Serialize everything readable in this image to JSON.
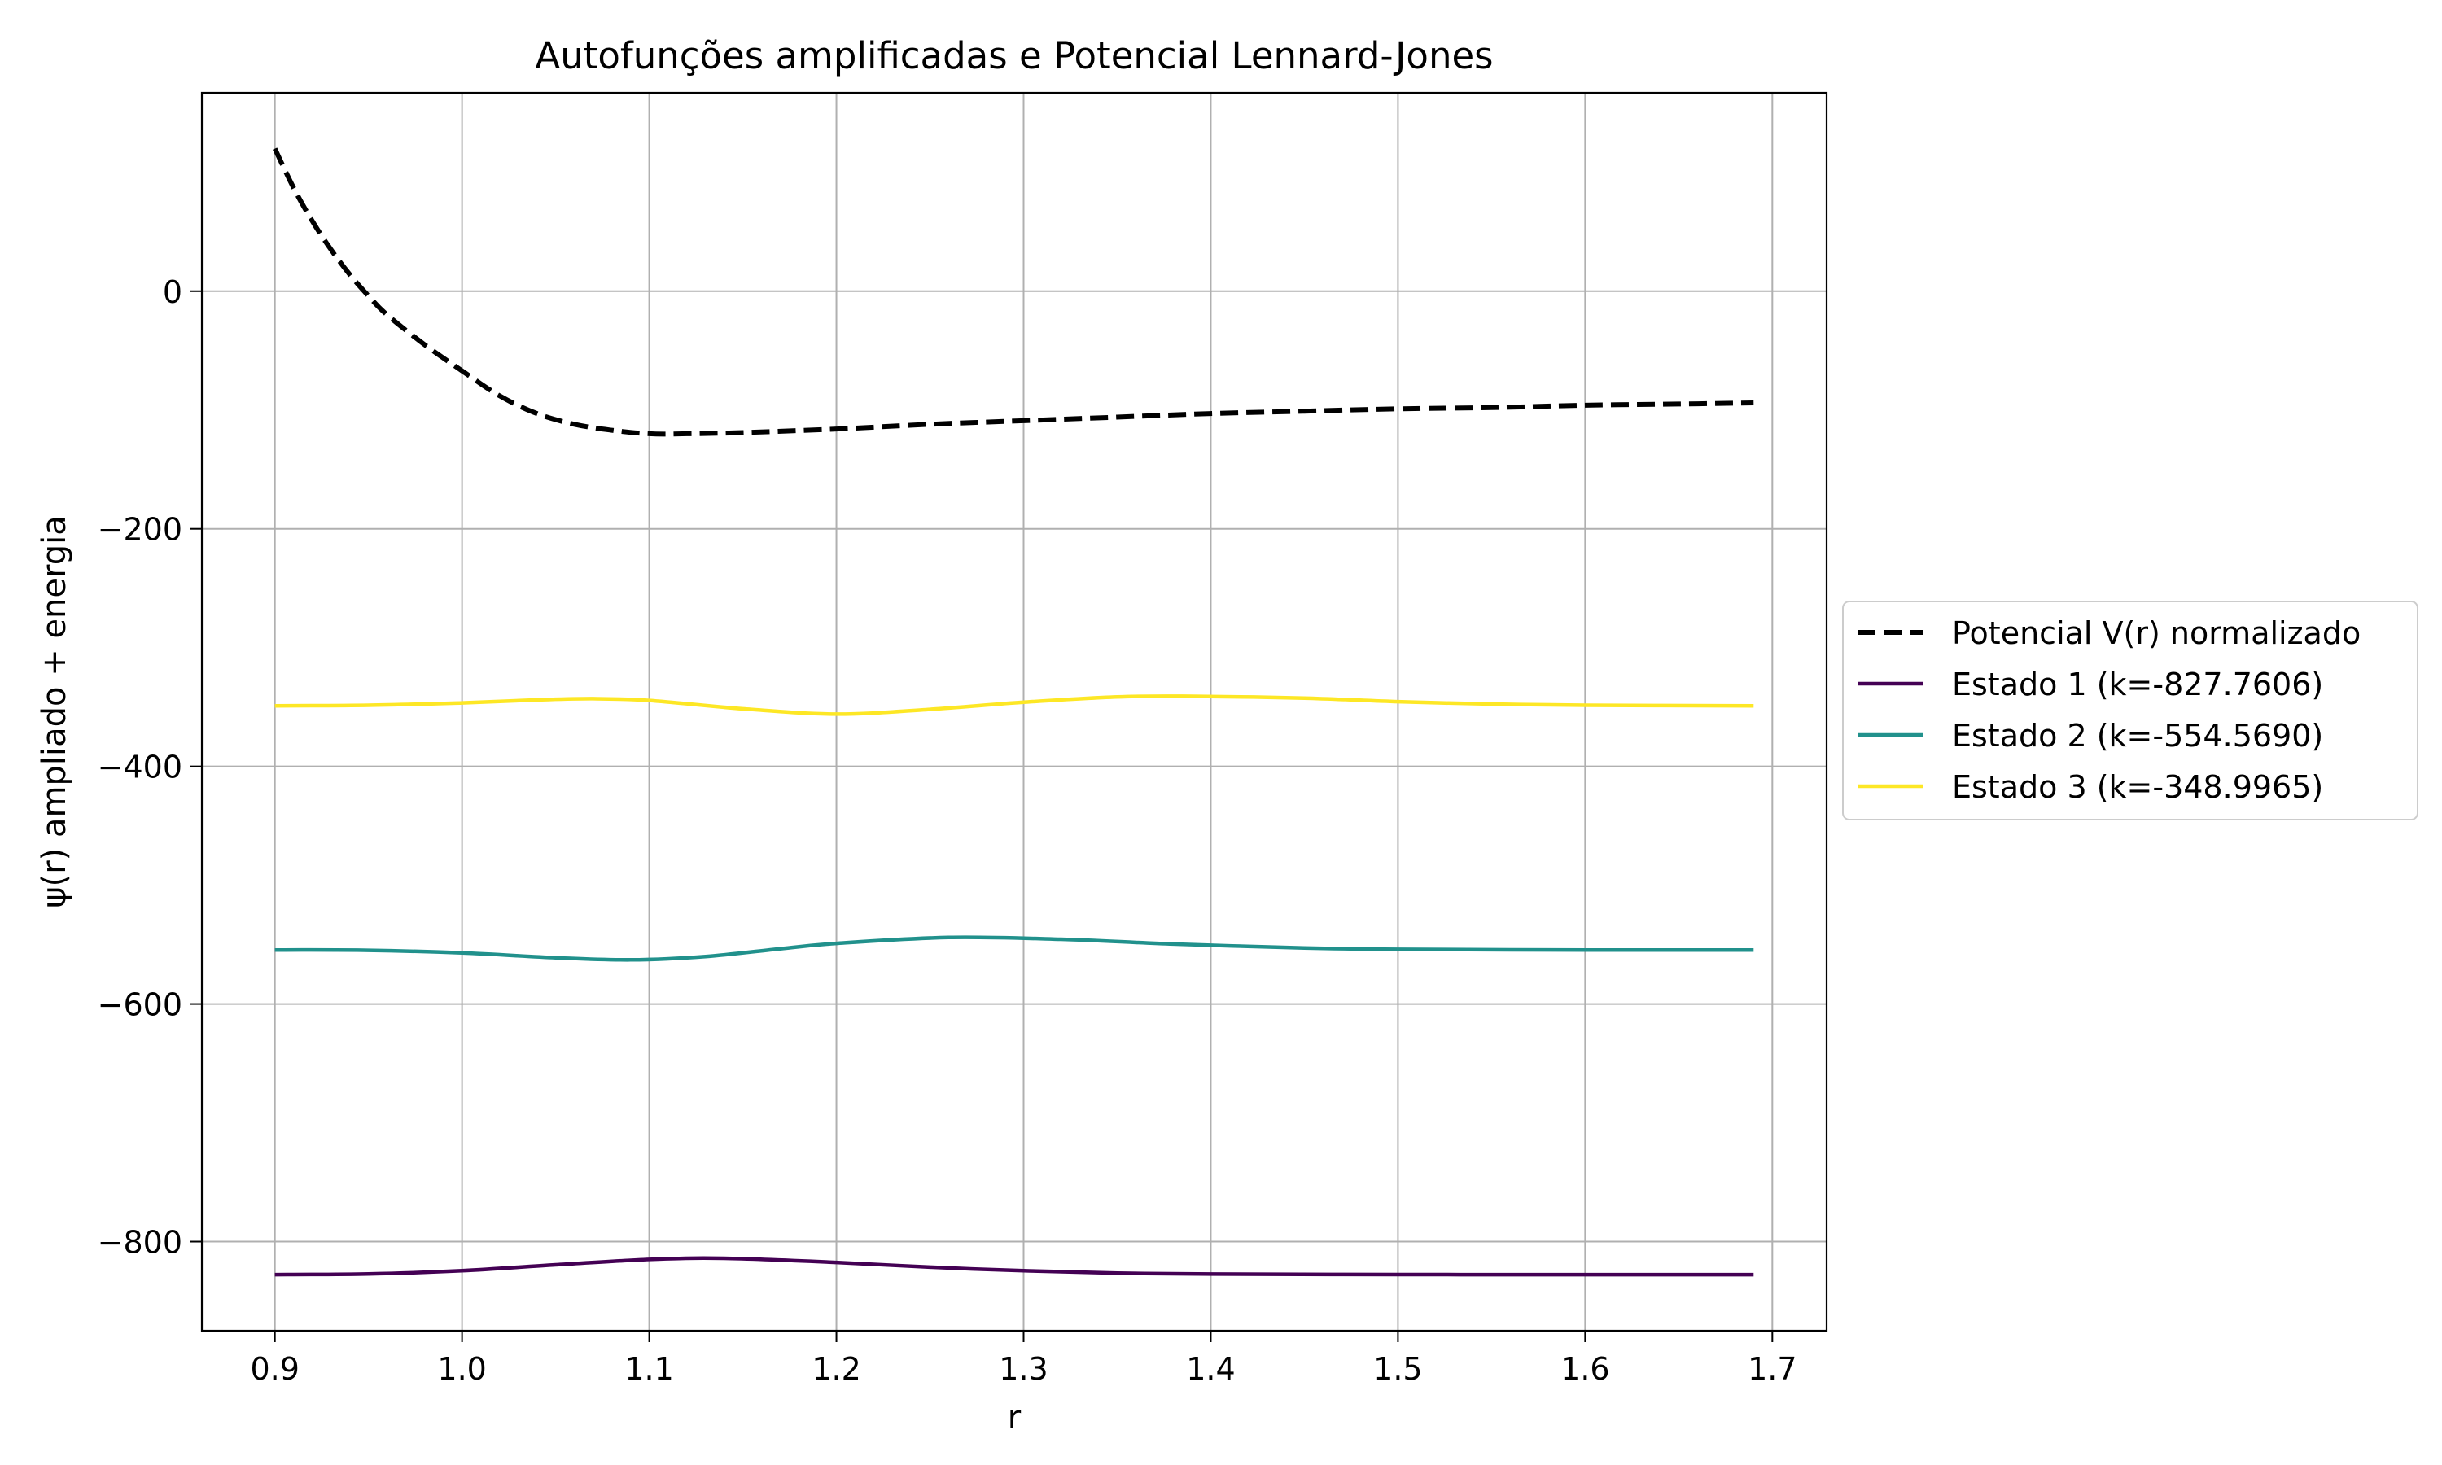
{
  "chart_data": {
    "type": "line",
    "title": "Autofunções amplificadas e Potencial Lennard-Jones",
    "xlabel": "r",
    "ylabel": "ψ(r) ampliado + energia",
    "xlim": [
      0.861,
      1.729
    ],
    "ylim": [
      -875,
      167
    ],
    "xticks": [
      0.9,
      1.0,
      1.1,
      1.2,
      1.3,
      1.4,
      1.5,
      1.6,
      1.7
    ],
    "xtick_labels": [
      "0.9",
      "1.0",
      "1.1",
      "1.2",
      "1.3",
      "1.4",
      "1.5",
      "1.6",
      "1.7"
    ],
    "yticks": [
      0,
      -200,
      -400,
      -600,
      -800
    ],
    "ytick_labels": [
      "0",
      "−200",
      "−400",
      "−600",
      "−800"
    ],
    "grid": true,
    "legend_position": "center-right outside",
    "series": [
      {
        "name": "Potencial V(r) normalizado",
        "color": "#000000",
        "dash": "dashed",
        "x": [
          0.9,
          0.91,
          0.92,
          0.93,
          0.94,
          0.95,
          0.96,
          0.98,
          1.0,
          1.02,
          1.04,
          1.06,
          1.08,
          1.1,
          1.12,
          1.15,
          1.2,
          1.25,
          1.3,
          1.35,
          1.4,
          1.45,
          1.5,
          1.55,
          1.6,
          1.65,
          1.69
        ],
        "y": [
          120,
          87,
          59,
          35,
          14,
          -4,
          -20,
          -45,
          -67,
          -88,
          -103,
          -112,
          -117,
          -120,
          -120,
          -119,
          -116,
          -112,
          -109,
          -106,
          -103,
          -101,
          -99,
          -98,
          -96,
          -95,
          -94
        ]
      },
      {
        "name": "Estado 1 (k=-827.7606)",
        "color": "#440154",
        "dash": "solid",
        "x": [
          0.9,
          0.95,
          1.0,
          1.05,
          1.1,
          1.14,
          1.2,
          1.25,
          1.3,
          1.35,
          1.4,
          1.5,
          1.6,
          1.69
        ],
        "y": [
          -827.8,
          -827.2,
          -824.5,
          -819.5,
          -815,
          -814,
          -817.5,
          -821.5,
          -824.5,
          -826.5,
          -827.3,
          -827.7,
          -827.8,
          -827.8
        ]
      },
      {
        "name": "Estado 2 (k=-554.5690)",
        "color": "#21918c",
        "dash": "solid",
        "x": [
          0.9,
          0.95,
          1.0,
          1.05,
          1.09,
          1.13,
          1.17,
          1.2,
          1.26,
          1.32,
          1.38,
          1.45,
          1.5,
          1.6,
          1.69
        ],
        "y": [
          -554.5,
          -554.8,
          -557,
          -561,
          -562.8,
          -560,
          -553.5,
          -549,
          -544,
          -545.5,
          -549.5,
          -552.8,
          -554,
          -554.5,
          -554.6
        ]
      },
      {
        "name": "Estado 3 (k=-348.9965)",
        "color": "#fde725",
        "dash": "solid",
        "x": [
          0.9,
          0.95,
          1.0,
          1.04,
          1.07,
          1.1,
          1.15,
          1.2,
          1.25,
          1.3,
          1.35,
          1.39,
          1.45,
          1.5,
          1.55,
          1.6,
          1.69
        ],
        "y": [
          -349,
          -348.5,
          -346.5,
          -344,
          -343,
          -344.5,
          -351.5,
          -356,
          -352,
          -346,
          -341.5,
          -341,
          -342.5,
          -345.5,
          -347.5,
          -348.5,
          -349
        ]
      }
    ]
  }
}
